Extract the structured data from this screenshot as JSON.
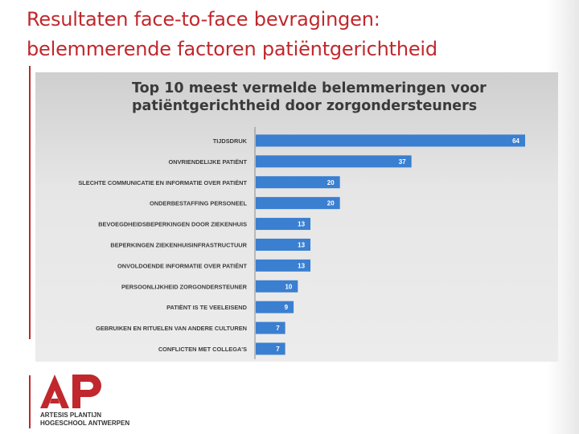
{
  "slide": {
    "title_line1": "Resultaten face-to-face bevragingen:",
    "title_line2": "belemmerende factoren patiëntgerichtheid"
  },
  "logo": {
    "name_line1": "ARTESIS PLANTIJN",
    "name_line2": "HOGESCHOOL ANTWERPEN",
    "brand_color": "#c0282d"
  },
  "chart_data": {
    "type": "bar",
    "orientation": "horizontal",
    "title_line1": "Top 10 meest vermelde belemmeringen voor",
    "title_line2": "patiëntgerichtheid door zorgondersteuners",
    "categories": [
      "TIJDSDRUK",
      "ONVRIENDELIJKE PATIËNT",
      "SLECHTE COMMUNICATIE EN INFORMATIE OVER PATIËNT",
      "ONDERBESTAFFING PERSONEEL",
      "BEVOEGDHEIDSBEPERKINGEN DOOR ZIEKENHUIS",
      "BEPERKINGEN ZIEKENHUISINFRASTRUCTUUR",
      "ONVOLDOENDE INFORMATIE OVER PATIËNT",
      "PERSOONLIJKHEID ZORGONDERSTEUNER",
      "PATIËNT IS TE VEELEISEND",
      "GEBRUIKEN EN RITUELEN VAN ANDERE CULTUREN",
      "CONFLICTEN MET COLLEGA'S"
    ],
    "values": [
      64,
      37,
      20,
      20,
      13,
      13,
      13,
      10,
      9,
      7,
      7
    ],
    "xlim": [
      0,
      70
    ],
    "bar_color": "#3a7fd0",
    "grid": false,
    "legend": false
  }
}
